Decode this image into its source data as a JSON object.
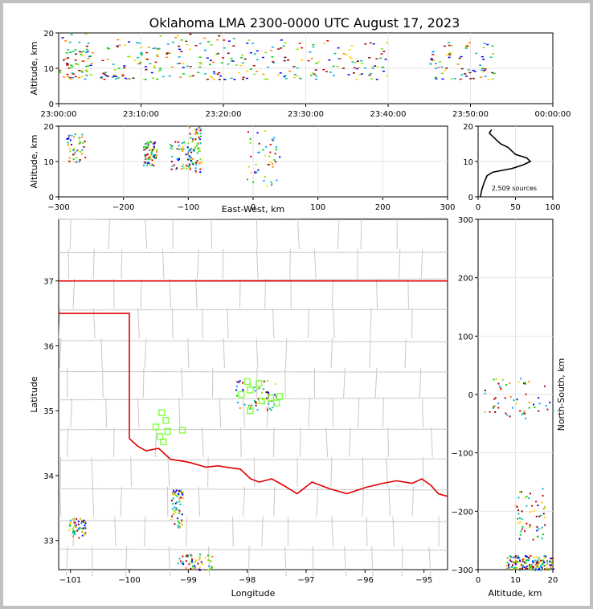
{
  "title": "Oklahoma LMA 2300-0000 UTC August 17, 2023",
  "time_panel": {
    "ylabel": "Altitude, km",
    "yticks": [
      "0",
      "10",
      "20"
    ],
    "xticks": [
      "23:00:00",
      "23:10:00",
      "23:20:00",
      "23:30:00",
      "23:40:00",
      "23:50:00",
      "00:00:00"
    ]
  },
  "ew_panel": {
    "ylabel": "Altitude, km",
    "xlabel": "East-West, km",
    "yticks": [
      "0",
      "10",
      "20"
    ],
    "xticks": [
      "−300",
      "−200",
      "−100",
      "0",
      "100",
      "200",
      "300"
    ]
  },
  "hist_panel": {
    "xticks": [
      "0",
      "50",
      "100"
    ],
    "yticks": [
      "0",
      "10",
      "20"
    ],
    "source_count": "2,509 sources"
  },
  "map_panel": {
    "xlabel": "Longitude",
    "ylabel": "Latitude",
    "xticks": [
      "−101",
      "−100",
      "−99",
      "−98",
      "−97",
      "−96",
      "−95"
    ],
    "yticks": [
      "33",
      "34",
      "35",
      "36",
      "37"
    ]
  },
  "ns_panel": {
    "ylabel": "North-South, km",
    "xlabel": "Altitude, km",
    "yticks": [
      "300",
      "200",
      "100",
      "0",
      "−100",
      "−200",
      "−300"
    ],
    "xticks": [
      "0",
      "10",
      "20"
    ]
  },
  "colors": {
    "border": "#e00000",
    "county": "#c8c8c8",
    "station": "#80ff40",
    "source_ramp": [
      "#0000ff",
      "#00a0ff",
      "#00c0a0",
      "#00d000",
      "#80e000",
      "#ffd000",
      "#ff8000",
      "#d00000",
      "#800000"
    ]
  },
  "chart_data": [
    {
      "type": "scatter",
      "panel": "altitude-vs-time",
      "x_range": [
        "23:00:00",
        "00:00:00"
      ],
      "ylim": [
        0,
        20
      ],
      "clusters": [
        {
          "t_start": "23:00",
          "t_end": "23:04",
          "alt_min": 7,
          "alt_max": 20
        },
        {
          "t_start": "23:05",
          "t_end": "23:12",
          "alt_min": 7,
          "alt_max": 19
        },
        {
          "t_start": "23:12",
          "t_end": "23:20",
          "alt_min": 7,
          "alt_max": 20
        },
        {
          "t_start": "23:20",
          "t_end": "23:30",
          "alt_min": 7,
          "alt_max": 20
        },
        {
          "t_start": "23:30",
          "t_end": "23:40",
          "alt_min": 7,
          "alt_max": 18
        },
        {
          "t_start": "23:45",
          "t_end": "23:53",
          "alt_min": 7,
          "alt_max": 18
        }
      ]
    },
    {
      "type": "scatter",
      "panel": "altitude-vs-east-west",
      "xlim": [
        -300,
        300
      ],
      "ylim": [
        0,
        20
      ],
      "clusters": [
        {
          "x_min": -290,
          "x_max": -260,
          "alt_min": 10,
          "alt_max": 18
        },
        {
          "x_min": -170,
          "x_max": -150,
          "alt_min": 9,
          "alt_max": 16
        },
        {
          "x_min": -130,
          "x_max": -100,
          "alt_min": 8,
          "alt_max": 16
        },
        {
          "x_min": -100,
          "x_max": -80,
          "alt_min": 7,
          "alt_max": 20
        },
        {
          "x_min": -10,
          "x_max": 40,
          "alt_min": 3,
          "alt_max": 19
        }
      ]
    },
    {
      "type": "line",
      "panel": "altitude-histogram",
      "xlim": [
        0,
        100
      ],
      "ylim": [
        0,
        20
      ],
      "x": [
        3,
        5,
        8,
        12,
        20,
        45,
        60,
        70,
        65,
        50,
        40,
        30,
        20,
        15,
        18
      ],
      "y": [
        0,
        2,
        4,
        6,
        7,
        8,
        9,
        10,
        11,
        12,
        14,
        15,
        17,
        18,
        19
      ]
    },
    {
      "type": "scatter",
      "panel": "plan-view-map",
      "xlim": [
        -101.2,
        -94.6
      ],
      "ylim": [
        32.55,
        37.95
      ],
      "clusters": [
        {
          "lon_min": -101.05,
          "lon_max": -100.75,
          "lat_min": 33.05,
          "lat_max": 33.35
        },
        {
          "lon_min": -99.3,
          "lon_max": -99.1,
          "lat_min": 33.2,
          "lat_max": 33.8
        },
        {
          "lon_min": -99.2,
          "lon_max": -98.6,
          "lat_min": 32.55,
          "lat_max": 32.8
        },
        {
          "lon_min": -98.2,
          "lon_max": -97.5,
          "lat_min": 35.0,
          "lat_max": 35.5
        }
      ],
      "stations": [
        [
          -99.55,
          34.75
        ],
        [
          -99.45,
          34.97
        ],
        [
          -99.38,
          34.85
        ],
        [
          -99.35,
          34.68
        ],
        [
          -99.48,
          34.6
        ],
        [
          -99.42,
          34.52
        ],
        [
          -99.1,
          34.7
        ],
        [
          -98.0,
          35.45
        ],
        [
          -98.1,
          35.25
        ],
        [
          -97.95,
          35.32
        ],
        [
          -97.8,
          35.42
        ],
        [
          -97.75,
          35.15
        ],
        [
          -97.6,
          35.2
        ],
        [
          -97.45,
          35.22
        ],
        [
          -97.5,
          35.12
        ],
        [
          -97.95,
          35.0
        ]
      ]
    },
    {
      "type": "scatter",
      "panel": "north-south-vs-altitude",
      "xlim": [
        0,
        20
      ],
      "ylim": [
        -300,
        300
      ],
      "clusters": [
        {
          "alt_min": 1,
          "alt_max": 20,
          "ns_min": -40,
          "ns_max": 30
        },
        {
          "alt_min": 10,
          "alt_max": 18,
          "ns_min": -250,
          "ns_max": -160
        },
        {
          "alt_min": 7,
          "alt_max": 20,
          "ns_min": -300,
          "ns_max": -275
        }
      ]
    }
  ]
}
